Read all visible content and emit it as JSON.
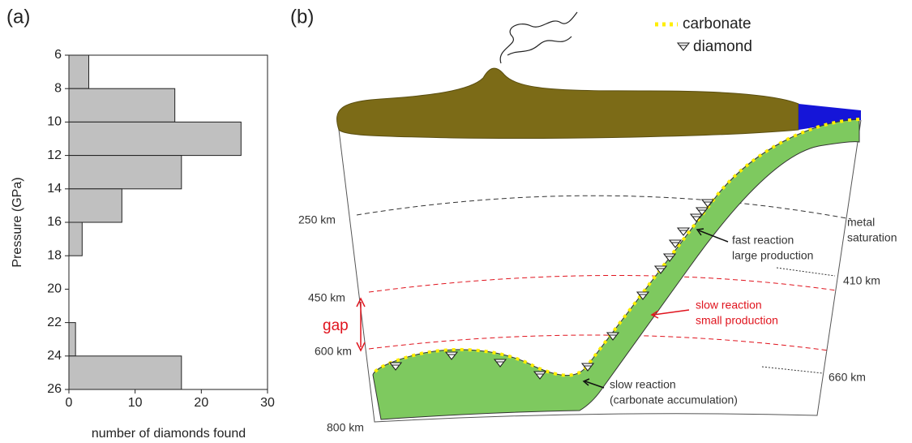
{
  "chart_data": {
    "type": "histogram",
    "orientation": "horizontal",
    "panel_label": "(a)",
    "ylabel": "Pressure (GPa)",
    "xlabel": "number of diamonds found",
    "bins": [
      6,
      8,
      10,
      12,
      14,
      16,
      18,
      20,
      22,
      24,
      26
    ],
    "values": [
      3,
      16,
      26,
      17,
      8,
      2,
      0,
      0,
      1,
      17
    ],
    "color": "#c0c0c0",
    "xlim": [
      0,
      30
    ],
    "xticks": [
      0,
      10,
      20,
      30
    ],
    "ylim": [
      6,
      26
    ],
    "yticks": [
      6,
      8,
      10,
      12,
      14,
      16,
      18,
      20,
      22,
      24,
      26
    ],
    "y_inverted": true
  },
  "diagram": {
    "panel_label": "(b)",
    "legend": {
      "carbonate": "carbonate",
      "diamond": "diamond"
    },
    "depth_labels": {
      "d250": "250 km",
      "d450": "450 km",
      "d600": "600 km",
      "d800": "800 km",
      "d410": "410 km",
      "d660": "660 km"
    },
    "metal_saturation": [
      "metal",
      "saturation"
    ],
    "gap": "gap",
    "fast": [
      "fast reaction",
      "large production"
    ],
    "slow_small": [
      "slow reaction",
      "small production"
    ],
    "slow_accum": [
      "slow reaction",
      "(carbonate accumulation)"
    ]
  }
}
